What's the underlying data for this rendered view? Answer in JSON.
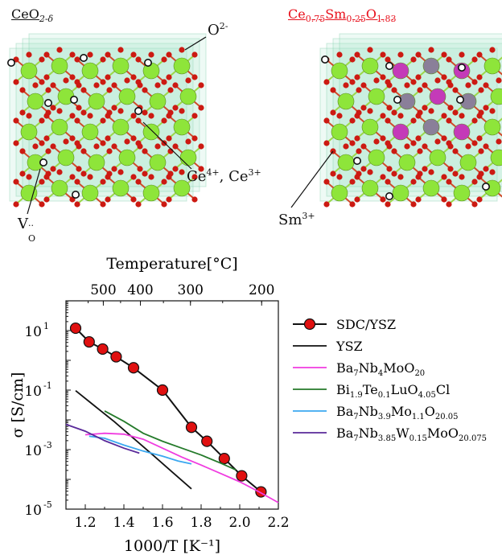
{
  "top": {
    "left_title": {
      "base": "CeO",
      "sub": "2-δ"
    },
    "right_title": {
      "parts": [
        {
          "t": "Ce",
          "sub": "0.75"
        },
        {
          "t": "Sm",
          "sub": "0.25"
        },
        {
          "t": "O",
          "sub": "1.83"
        }
      ]
    },
    "labels": {
      "oxygen": {
        "t": "O",
        "sup": "2-"
      },
      "cerium": {
        "t1": "Ce",
        "sup1": "4+",
        "mid": ", Ce",
        "sup2": "3+"
      },
      "vacancy": {
        "t": "V",
        "sub": "O",
        "sup": "··"
      },
      "samarium": {
        "t": "Sm",
        "sup": "3+"
      }
    },
    "colors": {
      "ce": "#8ee53a",
      "o": "#cc1a12",
      "sm": "#c43ab8",
      "sm_dim": "#8a7f99",
      "box": "#9fe3c6",
      "vacancy": "#ffffff"
    }
  },
  "chart_data": {
    "type": "line",
    "xlabel": "1000/T [K⁻¹]",
    "ylabel": "σ [S/cm]",
    "top_axis_label": "Temperature[°C]",
    "xlim": [
      1.1,
      2.2
    ],
    "ylim_log10": [
      -5,
      2
    ],
    "log_y": true,
    "x_ticks": [
      1.2,
      1.4,
      1.6,
      1.8,
      2.0,
      2.2
    ],
    "x_tick_labels": [
      "1.2",
      "1.4",
      "1.6",
      "1.8",
      "2.0",
      "2.2"
    ],
    "y_ticks_log10": [
      1,
      -1,
      -3,
      -5
    ],
    "y_tick_labels": [
      {
        "base": "10",
        "exp": "1"
      },
      {
        "base": "10",
        "exp": "-1"
      },
      {
        "base": "10",
        "exp": "-3"
      },
      {
        "base": "10",
        "exp": "-5"
      }
    ],
    "top_ticks_celsius": [
      500,
      400,
      300,
      200
    ],
    "top_tick_labels": [
      "500",
      "400",
      "300",
      "200"
    ],
    "legend_position": "right",
    "series": [
      {
        "name": "SDC/YSZ",
        "name_parts": [
          {
            "t": "SDC/YSZ"
          }
        ],
        "color": "#111111",
        "marker": "circle",
        "marker_color": "#e01010",
        "x": [
          1.15,
          1.22,
          1.29,
          1.36,
          1.45,
          1.6,
          1.75,
          1.83,
          1.92,
          2.01,
          2.11
        ],
        "log10_y": [
          1.08,
          0.62,
          0.38,
          0.12,
          -0.25,
          -1.0,
          -2.25,
          -2.72,
          -3.3,
          -3.88,
          -4.42
        ]
      },
      {
        "name": "YSZ",
        "name_parts": [
          {
            "t": "YSZ"
          }
        ],
        "color": "#111111",
        "x": [
          1.15,
          1.25,
          1.35,
          1.45,
          1.55,
          1.65,
          1.75
        ],
        "log10_y": [
          -1.02,
          -1.54,
          -2.06,
          -2.62,
          -3.18,
          -3.75,
          -4.32
        ]
      },
      {
        "name": "Ba7Nb4MoO20",
        "name_parts": [
          {
            "t": "Ba"
          },
          {
            "sub": "7"
          },
          {
            "t": "Nb"
          },
          {
            "sub": "4"
          },
          {
            "t": "MoO"
          },
          {
            "sub": "20"
          }
        ],
        "color": "#f03ce0",
        "x": [
          1.2,
          1.3,
          1.4,
          1.5,
          1.6,
          1.7,
          1.8,
          1.9,
          2.0,
          2.1,
          2.2
        ],
        "log10_y": [
          -2.5,
          -2.45,
          -2.48,
          -2.65,
          -2.95,
          -3.25,
          -3.52,
          -3.8,
          -4.08,
          -4.42,
          -4.78
        ]
      },
      {
        "name": "Bi1.9Te0.1LuO4.05Cl",
        "name_parts": [
          {
            "t": "Bi"
          },
          {
            "sub": "1.9"
          },
          {
            "t": "Te"
          },
          {
            "sub": "0.1"
          },
          {
            "t": "LuO"
          },
          {
            "sub": "4.05"
          },
          {
            "t": "Cl"
          }
        ],
        "color": "#247a2a",
        "x": [
          1.3,
          1.4,
          1.5,
          1.6,
          1.7,
          1.8,
          1.9,
          1.98
        ],
        "log10_y": [
          -1.7,
          -2.05,
          -2.45,
          -2.72,
          -2.95,
          -3.18,
          -3.45,
          -3.68
        ]
      },
      {
        "name": "Ba7Nb3.9Mo1.1O20.05",
        "name_parts": [
          {
            "t": "Ba"
          },
          {
            "sub": "7"
          },
          {
            "t": "Nb"
          },
          {
            "sub": "3.9"
          },
          {
            "t": "Mo"
          },
          {
            "sub": "1.1"
          },
          {
            "t": "O"
          },
          {
            "sub": "20.05"
          }
        ],
        "color": "#3ba8f0",
        "x": [
          1.22,
          1.3,
          1.4,
          1.5,
          1.6,
          1.68,
          1.75
        ],
        "log10_y": [
          -2.55,
          -2.62,
          -2.85,
          -3.05,
          -3.22,
          -3.38,
          -3.48
        ]
      },
      {
        "name": "Ba7Nb3.85W0.15MoO20.075",
        "name_parts": [
          {
            "t": "Ba"
          },
          {
            "sub": "7"
          },
          {
            "t": "Nb"
          },
          {
            "sub": "3.85"
          },
          {
            "t": "W"
          },
          {
            "sub": "0.15"
          },
          {
            "t": "MoO"
          },
          {
            "sub": "20.075"
          }
        ],
        "color": "#5a2a9a",
        "x": [
          1.1,
          1.2,
          1.3,
          1.4,
          1.48
        ],
        "log10_y": [
          -2.15,
          -2.38,
          -2.7,
          -2.95,
          -3.12
        ]
      }
    ]
  }
}
